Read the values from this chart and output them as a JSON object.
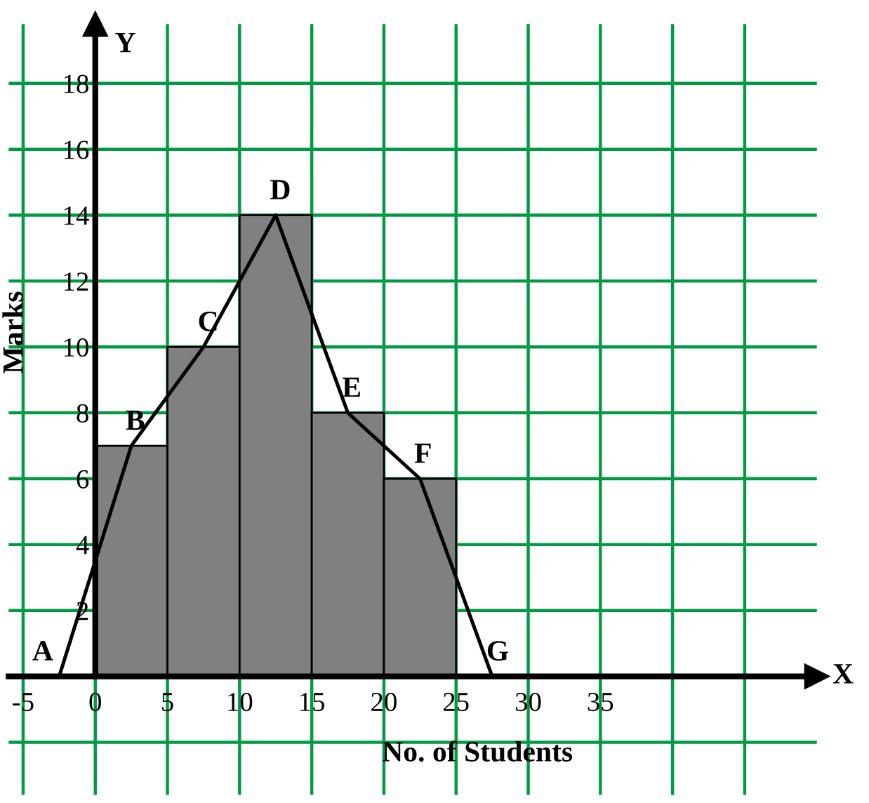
{
  "chart_data": {
    "type": "histogram",
    "xlabel": "No. of Students",
    "ylabel": "Marks",
    "bins": [
      0,
      5,
      10,
      15,
      20,
      25
    ],
    "values": [
      7,
      10,
      14,
      8,
      6
    ],
    "color": "#808080",
    "series": [
      {
        "type": "line",
        "x": [
          -2.5,
          2.5,
          7.5,
          12.5,
          17.5,
          22.5,
          27.5
        ],
        "values": [
          0,
          7,
          10,
          14,
          8,
          6,
          0
        ],
        "color": "#000000"
      }
    ],
    "xlim": [
      -6,
      50
    ],
    "ylim": [
      -3.6,
      19.8
    ],
    "xticks": [
      -5,
      0,
      5,
      10,
      15,
      20,
      25,
      30,
      35,
      {
        "value": 40,
        "label": null
      },
      {
        "value": 45,
        "label": null
      }
    ],
    "yticks": [
      {
        "value": -2,
        "label": null
      },
      {
        "value": 0,
        "label": null
      },
      2,
      4,
      6,
      8,
      10,
      12,
      14,
      16,
      18
    ],
    "grid": true,
    "marker": "none",
    "line_style": "solid",
    "annotations": [
      {
        "text": "A",
        "x": -2.5,
        "y": 0
      },
      {
        "text": "B",
        "x": 2.5,
        "y": 7
      },
      {
        "text": "C",
        "x": 7.5,
        "y": 10
      },
      {
        "text": "D",
        "x": 12.5,
        "y": 14
      },
      {
        "text": "E",
        "x": 17.5,
        "y": 8
      },
      {
        "text": "F",
        "x": 22.5,
        "y": 6
      },
      {
        "text": "G",
        "x": 27.5,
        "y": 0
      },
      "X",
      "Y"
    ]
  }
}
